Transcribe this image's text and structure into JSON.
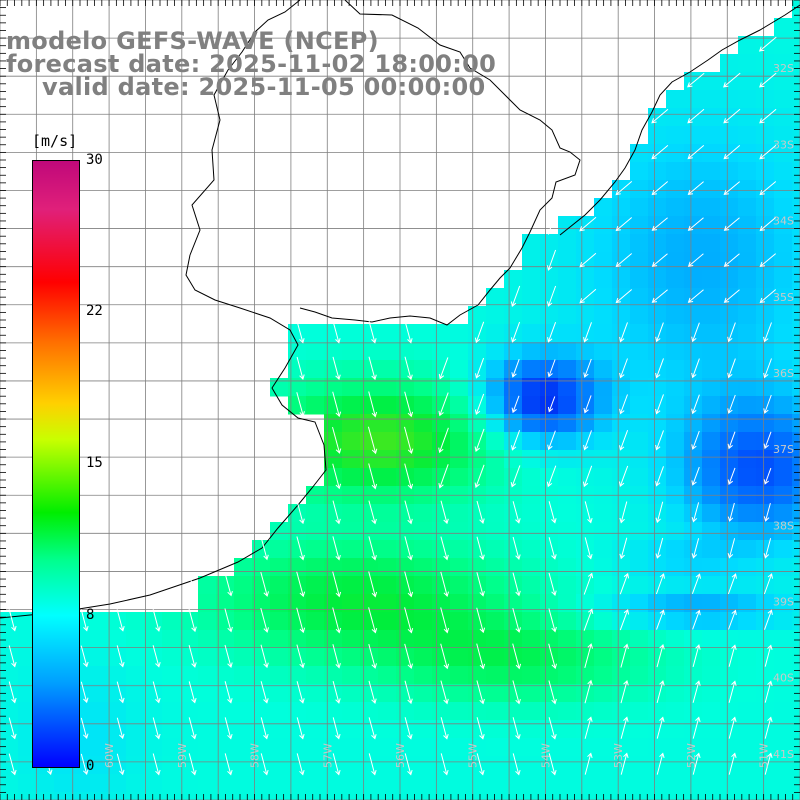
{
  "title": {
    "line1": "modelo GEFS-WAVE (NCEP)",
    "line2": "forecast date: 2025-11-02 18:00:00",
    "line3": "valid date: 2025-11-05 00:00:00"
  },
  "colorbar": {
    "unit": "[m/s]",
    "ticks": [
      "30",
      "22",
      "15",
      "8",
      "0"
    ],
    "tick_values": [
      30,
      22,
      15,
      8,
      0
    ]
  },
  "map": {
    "lat_labels": [
      "32S",
      "33S",
      "34S",
      "35S",
      "36S",
      "37S",
      "38S",
      "39S",
      "40S",
      "41S"
    ],
    "lon_labels": [
      "61W",
      "60W",
      "59W",
      "58W",
      "57W",
      "56W",
      "55W",
      "54W",
      "53W",
      "52W",
      "51W"
    ],
    "lon_range": [
      -61.5,
      -50.5
    ],
    "lat_range": [
      -31.0,
      -41.5
    ],
    "colors": {
      "land": "#ffffff",
      "grid": "#7f7f7f",
      "coast": "#000000",
      "arrow": "#ffffff",
      "label": "#c8c8c8"
    }
  }
}
